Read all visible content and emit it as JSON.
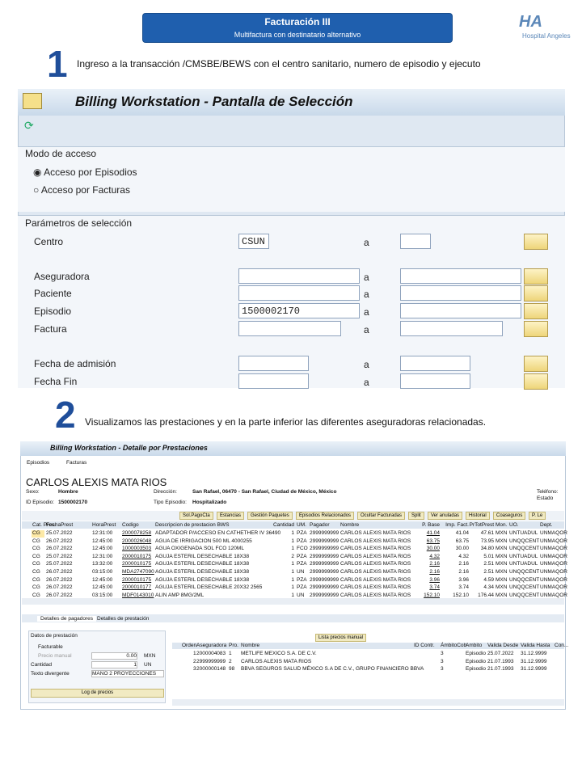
{
  "header": {
    "title": "Facturación III",
    "subtitle": "Multifactura con destinatario alternativo",
    "logo_mark": "HA",
    "logo_text": "Hospital Angeles"
  },
  "steps": [
    {
      "number": "1",
      "text": "Ingreso a la transacción /CMSBE/BEWS con el centro sanitario, numero de episodio y ejecuto"
    },
    {
      "number": "2",
      "text": "Visualizamos las prestaciones y en la parte inferior las diferentes aseguradoras relacionadas."
    }
  ],
  "screen1": {
    "title": "Billing Workstation - Pantalla de Selección",
    "access_group": "Modo de acceso",
    "access_options": [
      "Acceso por Episodios",
      "Acceso por Facturas"
    ],
    "params_group": "Parámetros de selección",
    "range_separator": "a",
    "fields": [
      {
        "label": "Centro",
        "from": "CSUN"
      },
      {
        "label": "Aseguradora",
        "from": ""
      },
      {
        "label": "Paciente",
        "from": ""
      },
      {
        "label": "Episodio",
        "from": "1500002170"
      },
      {
        "label": "Factura",
        "from": ""
      },
      {
        "label": "Fecha de admisión",
        "from": ""
      },
      {
        "label": "Fecha Fin",
        "from": ""
      }
    ]
  },
  "screen2": {
    "title": "Billing Workstation - Detalle por Prestaciones",
    "nav": [
      "Episodios",
      "Facturas"
    ],
    "patient": "CARLOS ALEXIS MATA RIOS",
    "info": {
      "sexo_label": "Sexo:",
      "sexo": "Hombre",
      "dir_label": "Dirección:",
      "dir": "San Rafael, 06470 - San Rafael, Ciudad de México, México",
      "tel_label": "Teléfono:",
      "id_label": "ID Episodio:",
      "id": "1500002170",
      "tipo_label": "Tipo Episodio:",
      "tipo": "Hospitalizado",
      "estado_label": "Estado"
    },
    "buttons": [
      "Sol.PagoCta",
      "Estancias",
      "Gestión Paquetes",
      "Episodios Relacionados",
      "Ocultar Facturadas",
      "Split",
      "Ver anuladas",
      "Historial",
      "Coaseguros",
      "P. Le"
    ],
    "columns": [
      "Cat. Pres.",
      "FechaPrest",
      "HoraPrest",
      "Codigo",
      "Descripcion de prestacion BWS",
      "Cantidad",
      "UM.",
      "Pagador",
      "Nombre",
      "P. Base",
      "Imp. Fact.",
      "PrTotPrest",
      "Mon.",
      "UO.",
      "Dept."
    ],
    "rows": [
      [
        "CG",
        "25.07.2022",
        "12:31:00",
        "2000078258",
        "ADAPTADOR P/ACCESO EN CATHETHER IV 36490",
        "1",
        "PZA",
        "2999999999",
        "CARLOS ALEXIS MATA RIOS",
        "41.04",
        "41.04",
        "47.61",
        "MXN",
        "UNTUADUL",
        "UNMAQOR"
      ],
      [
        "CG",
        "26.07.2022",
        "12:45:00",
        "2000026048",
        "AGUA DE IRRIGACION 500 ML 4000255",
        "1",
        "PZA",
        "2999999999",
        "CARLOS ALEXIS MATA RIOS",
        "63.75",
        "63.75",
        "73.95",
        "MXN",
        "UNQQCENT",
        "UNMAQOR"
      ],
      [
        "CG",
        "26.07.2022",
        "12:45:00",
        "1000003503",
        "AGUA OXIGENADA SOL FCO 120ML",
        "1",
        "FCO",
        "2999999999",
        "CARLOS ALEXIS MATA RIOS",
        "30.00",
        "30.00",
        "34.80",
        "MXN",
        "UNQQCENT",
        "UNMAQOR"
      ],
      [
        "CG",
        "25.07.2022",
        "12:31:00",
        "2000010175",
        "AGUJA ESTERIL DESECHABLE 18X38",
        "2",
        "PZA",
        "2999999999",
        "CARLOS ALEXIS MATA RIOS",
        "4.32",
        "4.32",
        "5.01",
        "MXN",
        "UNTUADUL",
        "UNMAQOR"
      ],
      [
        "CG",
        "25.07.2022",
        "13:32:00",
        "2000010175",
        "AGUJA ESTERIL DESECHABLE 18X38",
        "1",
        "PZA",
        "2999999999",
        "CARLOS ALEXIS MATA RIOS",
        "2.16",
        "2.16",
        "2.51",
        "MXN",
        "UNTUADUL",
        "UNMAQOR"
      ],
      [
        "CG",
        "26.07.2022",
        "03:15:00",
        "MDA2747090",
        "AGUJA ESTERIL DESECHABLE 18X38",
        "1",
        "UN",
        "2999999999",
        "CARLOS ALEXIS MATA RIOS",
        "2.16",
        "2.16",
        "2.51",
        "MXN",
        "UNQQCENT",
        "UNMAQOR"
      ],
      [
        "CG",
        "26.07.2022",
        "12:45:00",
        "2000010175",
        "AGUJA ESTERIL DESECHABLE 18X38",
        "1",
        "PZA",
        "2999999999",
        "CARLOS ALEXIS MATA RIOS",
        "3.96",
        "3.96",
        "4.59",
        "MXN",
        "UNQQCENT",
        "UNMAQOR"
      ],
      [
        "CG",
        "26.07.2022",
        "12:45:00",
        "2000010177",
        "AGUJA ESTERIL DESECHABLE 20X32 2565",
        "1",
        "PZA",
        "2999999999",
        "CARLOS ALEXIS MATA RIOS",
        "3.74",
        "3.74",
        "4.34",
        "MXN",
        "UNQQCENT",
        "UNMAQOR"
      ],
      [
        "CG",
        "26.07.2022",
        "03:15:00",
        "MDF0143010",
        "ALIN AMP 8MG/2ML",
        "1",
        "UN",
        "2999999999",
        "CARLOS ALEXIS MATA RIOS",
        "152.10",
        "152.10",
        "176.44",
        "MXN",
        "UNQQCENT",
        "UNMAQOR"
      ]
    ],
    "tabs": [
      "Detalles de pagadores",
      "Detalles de prestación"
    ],
    "detail": {
      "group": "Datos de prestación",
      "facturable": "Facturable",
      "precio_label": "Precio manual",
      "precio": "0.00",
      "moneda": "MXN",
      "cantidad_label": "Cantidad",
      "cantidad": "1",
      "unidad": "UN",
      "texto_label": "Texto divergente",
      "texto": "MANO 2 PROYECCIONES",
      "log_button": "Log de precios"
    },
    "payer_button": "Lista precios manual",
    "payer_columns": [
      "Orden",
      "Aseguradora",
      "Pro.",
      "Nombre",
      "ID Contr.",
      "ÁmbitoCob",
      "Ambito",
      "Valida Desde",
      "Valida Hasta",
      "Con..."
    ],
    "payers": [
      [
        "1",
        "2000004083",
        "1",
        "METLIFE MEXICO S.A. DE C.V.",
        "",
        "3",
        "Episodio",
        "25.07.2022",
        "31.12.9999",
        ""
      ],
      [
        "2",
        "2999999999",
        "2",
        "CARLOS ALEXIS MATA RIOS",
        "",
        "3",
        "Episodio",
        "21.07.1993",
        "31.12.9999",
        ""
      ],
      [
        "3",
        "2000000148",
        "98",
        "BBVA SEGUROS SALUD MÉXICO S.A DE C.V., GRUPO FINANCIERO BBVA",
        "",
        "3",
        "Episodio",
        "21.07.1993",
        "31.12.9999",
        ""
      ]
    ]
  }
}
